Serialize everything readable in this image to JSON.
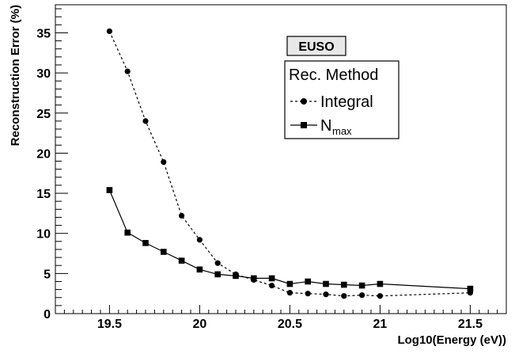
{
  "chart_data": {
    "type": "line",
    "title": "",
    "xlabel": "Log10(Energy (eV))",
    "ylabel": "Reconstruction Error (%)",
    "xlim": [
      19.2,
      21.7
    ],
    "ylim": [
      0,
      38.5
    ],
    "x_ticks": [
      19.5,
      20,
      20.5,
      21,
      21.5
    ],
    "x_tick_labels": [
      "19.5",
      "20",
      "20.5",
      "21",
      "21.5"
    ],
    "y_ticks": [
      0,
      5,
      10,
      15,
      20,
      25,
      30,
      35
    ],
    "y_tick_labels": [
      "0",
      "5",
      "10",
      "15",
      "20",
      "25",
      "30",
      "35"
    ],
    "grid": false,
    "tag_label": "EUSO",
    "legend": {
      "title": "Rec. Method",
      "placement": "top-right",
      "entries": [
        {
          "label": "Integral",
          "sub": "",
          "marker": "circle",
          "line": "dotted"
        },
        {
          "label": "N",
          "sub": "max",
          "marker": "square",
          "line": "solid"
        }
      ]
    },
    "series": [
      {
        "name": "Integral",
        "marker": "circle",
        "line": "dotted",
        "color": "#000000",
        "x": [
          19.5,
          19.6,
          19.7,
          19.8,
          19.9,
          20.0,
          20.1,
          20.2,
          20.3,
          20.4,
          20.5,
          20.6,
          20.7,
          20.8,
          20.9,
          21.0,
          21.5
        ],
        "y": [
          35.2,
          30.2,
          24.0,
          18.9,
          12.2,
          9.2,
          6.3,
          4.9,
          4.2,
          3.5,
          2.6,
          2.5,
          2.4,
          2.2,
          2.3,
          2.2,
          2.6
        ]
      },
      {
        "name": "Nmax",
        "marker": "square",
        "line": "solid",
        "color": "#000000",
        "x": [
          19.5,
          19.6,
          19.7,
          19.8,
          19.9,
          20.0,
          20.1,
          20.2,
          20.3,
          20.4,
          20.5,
          20.6,
          20.7,
          20.8,
          20.9,
          21.0,
          21.5
        ],
        "y": [
          15.4,
          10.1,
          8.8,
          7.7,
          6.6,
          5.5,
          4.9,
          4.7,
          4.4,
          4.4,
          3.7,
          4.0,
          3.7,
          3.6,
          3.5,
          3.7,
          3.1
        ]
      }
    ]
  }
}
